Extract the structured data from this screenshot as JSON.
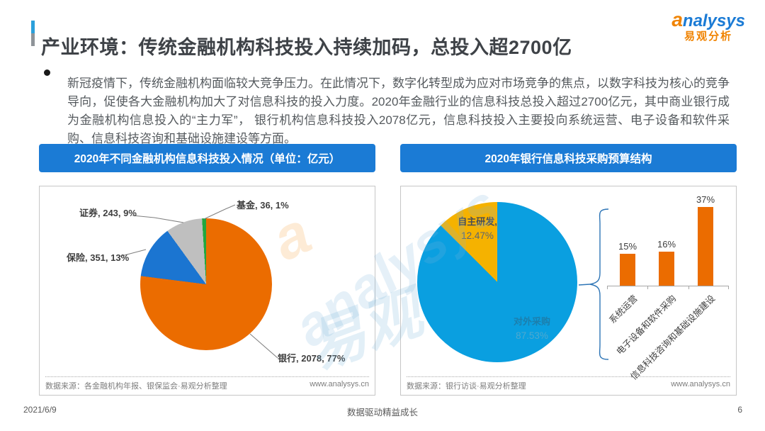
{
  "page": {
    "title": "产业环境：传统金融机构科技投入持续加码，总投入超2700亿",
    "logo": {
      "brand_initial": "a",
      "brand_rest": "nalysys",
      "brand_cn": "易观分析"
    },
    "bullet_text": "新冠疫情下，传统金融机构面临较大竞争压力。在此情况下，数字化转型成为应对市场竞争的焦点，以数字科技为核心的竞争导向，促使各大金融机构加大了对信息科技的投入力度。2020年金融行业的信息科技总投入超过2700亿元，其中商业银行成为金融机构信息投入的“主力军”， 银行机构信息科技投入2078亿元，信息科技投入主要投向系统运营、电子设备和软件采购、信息科技咨询和基础设施建设等方面。",
    "watermark": {
      "script": "analysys",
      "cn": "易观",
      "swirl": "a"
    },
    "footer": {
      "date": "2021/6/9",
      "slogan": "数据驱动精益成长",
      "page_number": "6"
    }
  },
  "chart_data": [
    {
      "type": "pie",
      "title": "2020年不同金融机构信息科技投入情况（单位：亿元）",
      "unit": "亿元",
      "slices": [
        {
          "name": "银行",
          "value": 2078,
          "pct": 77,
          "color": "#EB6C00",
          "label": "银行, 2078, 77%"
        },
        {
          "name": "保险",
          "value": 351,
          "pct": 13,
          "color": "#1B75D1",
          "label": "保险, 351, 13%"
        },
        {
          "name": "证券",
          "value": 243,
          "pct": 9,
          "color": "#BFBFBF",
          "label": "证券, 243, 9%"
        },
        {
          "name": "基金",
          "value": 36,
          "pct": 1,
          "color": "#21A73F",
          "label": "基金, 36, 1%"
        }
      ],
      "source": "数据来源：各金融机构年报、银保监会·易观分析整理",
      "site": "www.analysys.cn"
    },
    {
      "type": "pie",
      "title": "2020年银行信息科技采购预算结构",
      "slices": [
        {
          "name": "对外采购",
          "pct": 87.53,
          "color": "#0A9FE0",
          "label_name": "对外采购",
          "label_pct": "87.53%"
        },
        {
          "name": "自主研发",
          "pct": 12.47,
          "color": "#F5B200",
          "label_name": "自主研发,",
          "label_pct": "12.47%"
        }
      ],
      "source": "数据来源：银行访谈·易观分析整理",
      "site": "www.analysys.cn"
    },
    {
      "type": "bar",
      "categories": [
        "系统运营",
        "电子设备和软件采购",
        "信息科技咨询和基础设施建设"
      ],
      "values": [
        15,
        16,
        37
      ],
      "value_labels": [
        "15%",
        "16%",
        "37%"
      ],
      "bar_color": "#EB6C00",
      "ylim": [
        0,
        40
      ],
      "xlabel": "",
      "ylabel": ""
    }
  ]
}
